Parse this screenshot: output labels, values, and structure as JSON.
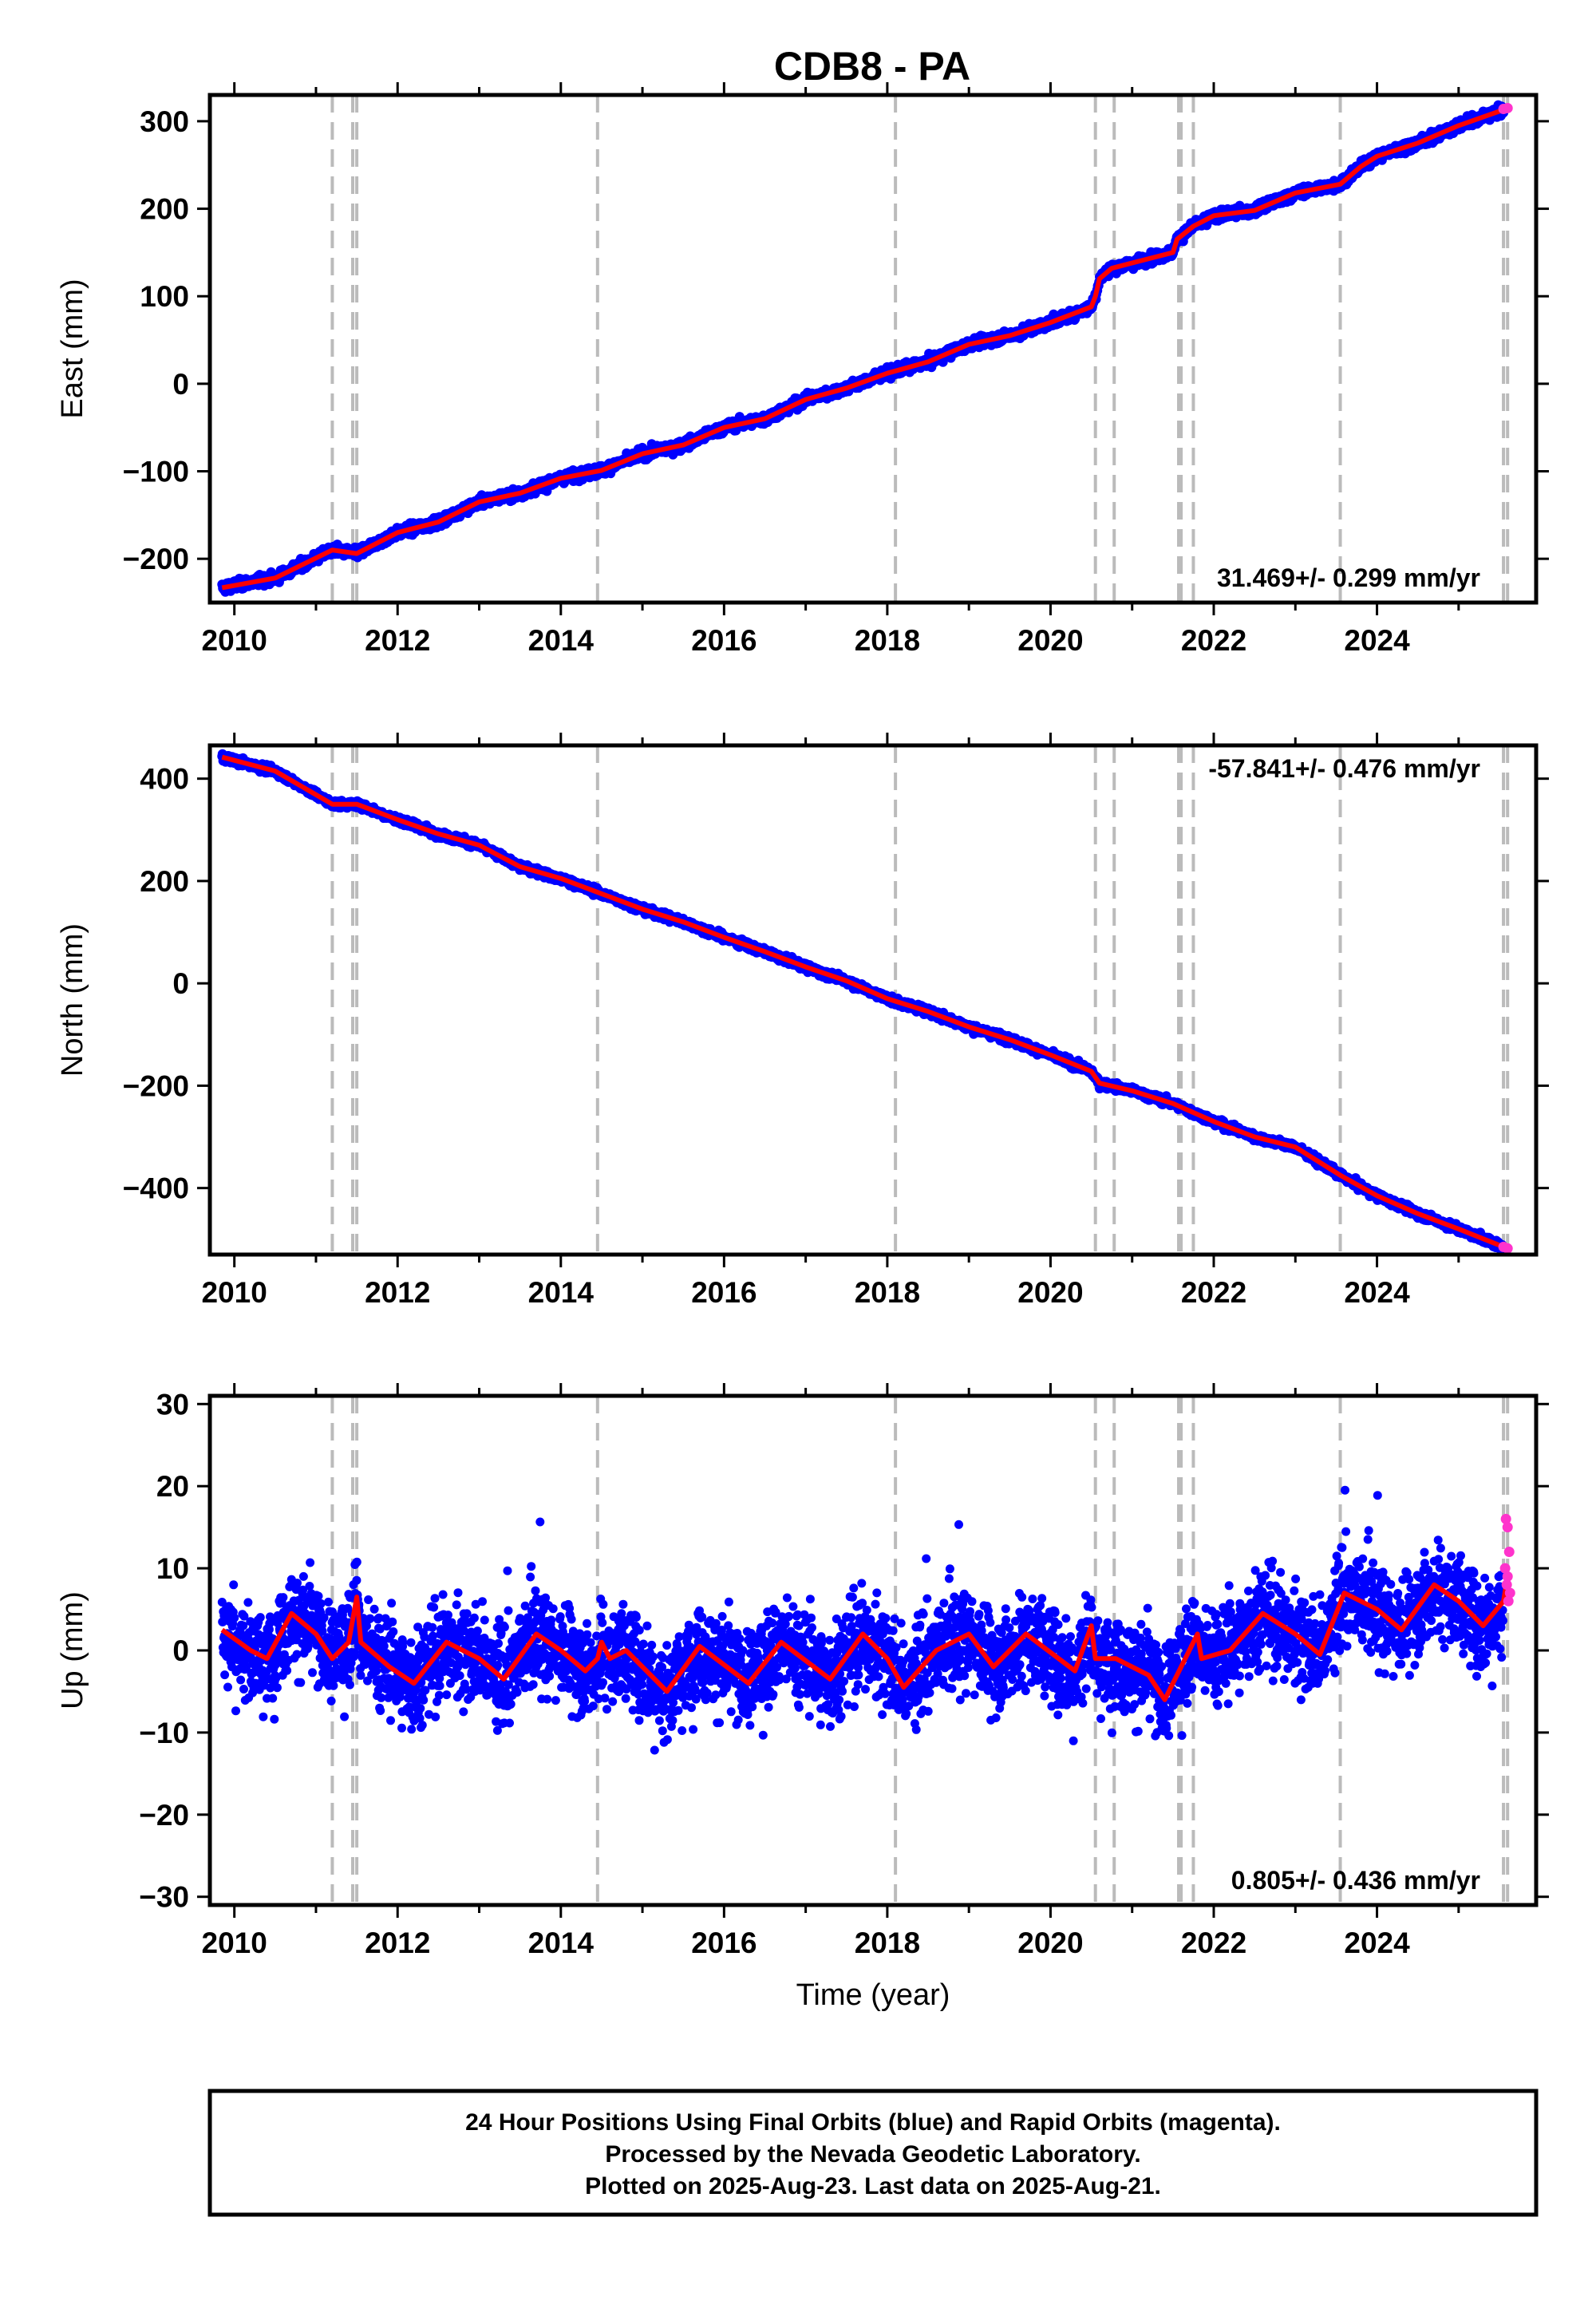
{
  "title": "CDB8 - PA",
  "colors": {
    "final": "#0000ff",
    "rapid": "#ff33cc",
    "model": "#ff0000",
    "breaks": "#bbbbbb"
  },
  "chart_data": [
    {
      "type": "scatter",
      "ylabel": "East (mm)",
      "xlabel": "",
      "xlim": [
        2009.7,
        2025.95
      ],
      "ylim": [
        -250,
        330
      ],
      "xticks": [
        "2010",
        "2012",
        "2014",
        "2016",
        "2018",
        "2020",
        "2022",
        "2024"
      ],
      "yticks": [
        "300",
        "200",
        "100",
        "0",
        "−100",
        "−200"
      ],
      "rate_label": "31.469+/- 0.299 mm/yr",
      "rate_position": "bottom-right",
      "grid": false,
      "model_points": [
        [
          2009.85,
          -233
        ],
        [
          2010.5,
          -222
        ],
        [
          2011.2,
          -190
        ],
        [
          2011.5,
          -194
        ],
        [
          2012.0,
          -170
        ],
        [
          2012.5,
          -158
        ],
        [
          2013.0,
          -135
        ],
        [
          2013.5,
          -125
        ],
        [
          2014.0,
          -108
        ],
        [
          2014.5,
          -99
        ],
        [
          2015.0,
          -80
        ],
        [
          2015.5,
          -70
        ],
        [
          2016.0,
          -50
        ],
        [
          2016.5,
          -40
        ],
        [
          2017.0,
          -18
        ],
        [
          2017.5,
          -5
        ],
        [
          2018.0,
          12
        ],
        [
          2018.5,
          25
        ],
        [
          2019.0,
          45
        ],
        [
          2019.5,
          55
        ],
        [
          2020.0,
          70
        ],
        [
          2020.5,
          88
        ],
        [
          2020.55,
          100
        ],
        [
          2020.6,
          120
        ],
        [
          2020.75,
          132
        ],
        [
          2021.0,
          138
        ],
        [
          2021.5,
          150
        ],
        [
          2021.55,
          165
        ],
        [
          2021.75,
          180
        ],
        [
          2022.0,
          192
        ],
        [
          2022.5,
          198
        ],
        [
          2023.0,
          218
        ],
        [
          2023.55,
          228
        ],
        [
          2023.8,
          248
        ],
        [
          2024.0,
          260
        ],
        [
          2024.5,
          275
        ],
        [
          2025.0,
          295
        ],
        [
          2025.55,
          313
        ]
      ],
      "rapid_points": [
        [
          2025.55,
          314
        ],
        [
          2025.6,
          315
        ]
      ]
    },
    {
      "type": "scatter",
      "ylabel": "North (mm)",
      "xlabel": "",
      "xlim": [
        2009.7,
        2025.95
      ],
      "ylim": [
        -530,
        465
      ],
      "xticks": [
        "2010",
        "2012",
        "2014",
        "2016",
        "2018",
        "2020",
        "2022",
        "2024"
      ],
      "yticks": [
        "400",
        "200",
        "0",
        "−200",
        "−400"
      ],
      "rate_label": "-57.841+/- 0.476 mm/yr",
      "rate_position": "top-right",
      "grid": false,
      "model_points": [
        [
          2009.85,
          442
        ],
        [
          2010.5,
          415
        ],
        [
          2011.2,
          350
        ],
        [
          2011.5,
          350
        ],
        [
          2012.0,
          320
        ],
        [
          2012.5,
          292
        ],
        [
          2013.0,
          270
        ],
        [
          2013.5,
          228
        ],
        [
          2014.0,
          205
        ],
        [
          2014.5,
          175
        ],
        [
          2015.0,
          145
        ],
        [
          2015.5,
          120
        ],
        [
          2016.0,
          90
        ],
        [
          2016.5,
          62
        ],
        [
          2017.0,
          32
        ],
        [
          2017.5,
          5
        ],
        [
          2018.0,
          -30
        ],
        [
          2018.5,
          -55
        ],
        [
          2019.0,
          -85
        ],
        [
          2019.5,
          -110
        ],
        [
          2020.0,
          -140
        ],
        [
          2020.5,
          -172
        ],
        [
          2020.6,
          -195
        ],
        [
          2021.0,
          -210
        ],
        [
          2021.5,
          -235
        ],
        [
          2022.0,
          -270
        ],
        [
          2022.5,
          -300
        ],
        [
          2023.0,
          -320
        ],
        [
          2023.55,
          -375
        ],
        [
          2024.0,
          -415
        ],
        [
          2024.5,
          -450
        ],
        [
          2025.0,
          -480
        ],
        [
          2025.55,
          -515
        ]
      ],
      "rapid_points": [
        [
          2025.55,
          -515
        ],
        [
          2025.6,
          -518
        ]
      ]
    },
    {
      "type": "scatter",
      "ylabel": "Up (mm)",
      "xlabel": "Time (year)",
      "xlim": [
        2009.7,
        2025.95
      ],
      "ylim": [
        -31,
        31
      ],
      "xticks": [
        "2010",
        "2012",
        "2014",
        "2016",
        "2018",
        "2020",
        "2022",
        "2024"
      ],
      "yticks": [
        "30",
        "20",
        "10",
        "0",
        "−10",
        "−20",
        "−30"
      ],
      "rate_label": "0.805+/- 0.436 mm/yr",
      "rate_position": "bottom-right",
      "grid": false,
      "model_points": [
        [
          2009.85,
          2.5
        ],
        [
          2010.2,
          0
        ],
        [
          2010.4,
          -1
        ],
        [
          2010.7,
          4.5
        ],
        [
          2011.0,
          2
        ],
        [
          2011.2,
          -1
        ],
        [
          2011.4,
          1
        ],
        [
          2011.5,
          6.5
        ],
        [
          2011.55,
          1
        ],
        [
          2011.9,
          -2
        ],
        [
          2012.2,
          -4
        ],
        [
          2012.6,
          1
        ],
        [
          2013.0,
          -1
        ],
        [
          2013.3,
          -3.5
        ],
        [
          2013.7,
          2
        ],
        [
          2014.0,
          0
        ],
        [
          2014.3,
          -2.5
        ],
        [
          2014.45,
          -1
        ],
        [
          2014.5,
          1
        ],
        [
          2014.6,
          -1
        ],
        [
          2014.8,
          0
        ],
        [
          2015.3,
          -5
        ],
        [
          2015.7,
          0.5
        ],
        [
          2016.3,
          -4
        ],
        [
          2016.7,
          1
        ],
        [
          2017.3,
          -3.5
        ],
        [
          2017.7,
          2
        ],
        [
          2018.0,
          -1
        ],
        [
          2018.2,
          -4.5
        ],
        [
          2018.6,
          0
        ],
        [
          2019.0,
          2
        ],
        [
          2019.3,
          -2
        ],
        [
          2019.7,
          2
        ],
        [
          2020.3,
          -2.5
        ],
        [
          2020.5,
          3
        ],
        [
          2020.55,
          -1
        ],
        [
          2020.8,
          -1
        ],
        [
          2021.2,
          -3
        ],
        [
          2021.4,
          -6
        ],
        [
          2021.6,
          -2
        ],
        [
          2021.8,
          2
        ],
        [
          2021.85,
          -1
        ],
        [
          2022.2,
          0
        ],
        [
          2022.6,
          4.5
        ],
        [
          2023.0,
          2
        ],
        [
          2023.3,
          -0.5
        ],
        [
          2023.6,
          7
        ],
        [
          2024.0,
          5
        ],
        [
          2024.3,
          2.5
        ],
        [
          2024.7,
          8
        ],
        [
          2025.0,
          6
        ],
        [
          2025.3,
          3
        ],
        [
          2025.55,
          6
        ],
        [
          2025.6,
          9
        ]
      ],
      "rapid_points": [
        [
          2025.58,
          16
        ],
        [
          2025.6,
          15
        ],
        [
          2025.62,
          12
        ],
        [
          2025.57,
          10
        ],
        [
          2025.59,
          8
        ],
        [
          2025.61,
          6
        ],
        [
          2025.6,
          9
        ],
        [
          2025.63,
          7
        ]
      ]
    }
  ],
  "break_years": [
    2011.2,
    2011.45,
    2011.5,
    2014.45,
    2018.1,
    2020.55,
    2020.78,
    2021.57,
    2021.6,
    2021.75,
    2023.55,
    2025.55,
    2025.6
  ],
  "footer": {
    "line1": "24 Hour Positions Using Final Orbits (blue) and Rapid Orbits (magenta).",
    "line2": "Processed by the Nevada Geodetic Laboratory.",
    "line3": "Plotted on 2025-Aug-23. Last data on 2025-Aug-21."
  }
}
